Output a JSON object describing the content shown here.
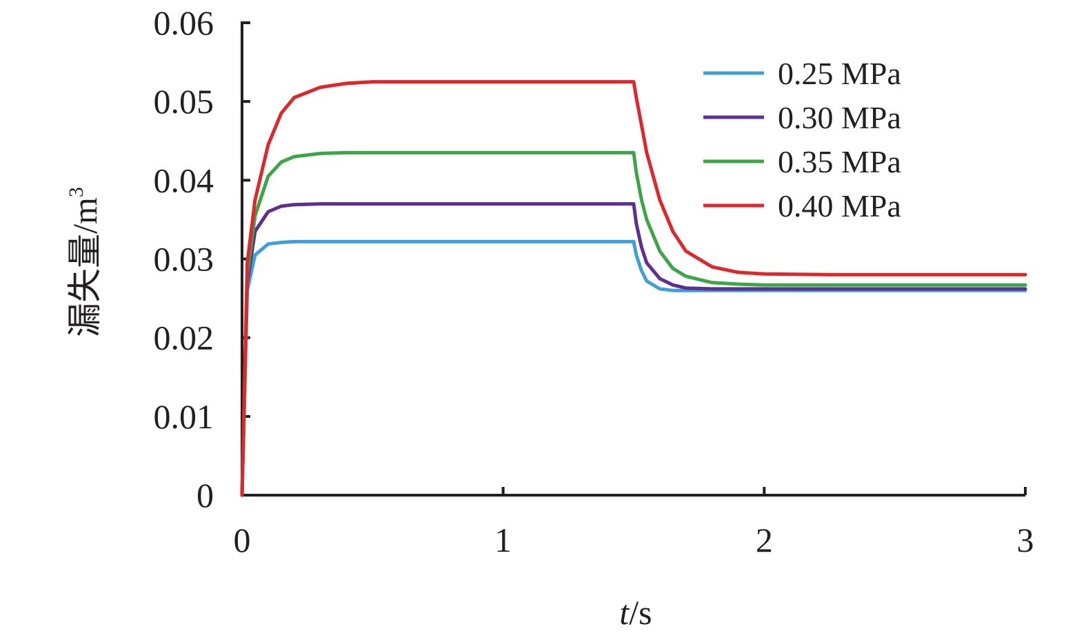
{
  "chart_data": {
    "type": "line",
    "xlabel_italic": "t",
    "xlabel_unit": "/s",
    "ylabel_main": "漏失量/m",
    "ylabel_sup": "3",
    "xlim": [
      0,
      3
    ],
    "ylim": [
      0,
      0.06
    ],
    "x_ticks": [
      0,
      1,
      2,
      3
    ],
    "x_tick_labels": [
      "0",
      "1",
      "2",
      "3"
    ],
    "y_ticks": [
      0,
      0.01,
      0.02,
      0.03,
      0.04,
      0.05,
      0.06
    ],
    "y_tick_labels": [
      "0",
      "0.01",
      "0.02",
      "0.03",
      "0.04",
      "0.05",
      "0.06"
    ],
    "grid": false,
    "legend_position": "top-right",
    "x": [
      0,
      0.02,
      0.05,
      0.1,
      0.15,
      0.2,
      0.3,
      0.4,
      0.5,
      0.75,
      1.0,
      1.25,
      1.5,
      1.51,
      1.53,
      1.55,
      1.6,
      1.65,
      1.7,
      1.8,
      1.9,
      2.0,
      2.25,
      2.5,
      2.75,
      3.0
    ],
    "series": [
      {
        "name": "0.25 MPa",
        "color": "#3ea0d8",
        "values": [
          0,
          0.026,
          0.0305,
          0.0319,
          0.0321,
          0.0322,
          0.0322,
          0.0322,
          0.0322,
          0.0322,
          0.0322,
          0.0322,
          0.0322,
          0.0305,
          0.0285,
          0.0272,
          0.0262,
          0.026,
          0.026,
          0.026,
          0.026,
          0.026,
          0.026,
          0.026,
          0.026,
          0.026
        ]
      },
      {
        "name": "0.30 MPa",
        "color": "#5e2e91",
        "values": [
          0,
          0.027,
          0.0335,
          0.036,
          0.0367,
          0.0369,
          0.037,
          0.037,
          0.037,
          0.037,
          0.037,
          0.037,
          0.037,
          0.0345,
          0.0315,
          0.0295,
          0.0275,
          0.0267,
          0.0263,
          0.0262,
          0.0262,
          0.0262,
          0.0262,
          0.0262,
          0.0262,
          0.0262
        ]
      },
      {
        "name": "0.35 MPa",
        "color": "#3aa646",
        "values": [
          0,
          0.028,
          0.0355,
          0.0405,
          0.0423,
          0.043,
          0.0434,
          0.0435,
          0.0435,
          0.0435,
          0.0435,
          0.0435,
          0.0435,
          0.041,
          0.0375,
          0.035,
          0.031,
          0.0288,
          0.0278,
          0.027,
          0.0268,
          0.0267,
          0.0267,
          0.0267,
          0.0267,
          0.0267
        ]
      },
      {
        "name": "0.40 MPa",
        "color": "#e0262b",
        "values": [
          0,
          0.0295,
          0.0375,
          0.0445,
          0.0485,
          0.0505,
          0.0518,
          0.0523,
          0.0525,
          0.0525,
          0.0525,
          0.0525,
          0.0525,
          0.0505,
          0.047,
          0.0435,
          0.0375,
          0.0335,
          0.031,
          0.029,
          0.0283,
          0.0281,
          0.028,
          0.028,
          0.028,
          0.028
        ]
      }
    ]
  }
}
